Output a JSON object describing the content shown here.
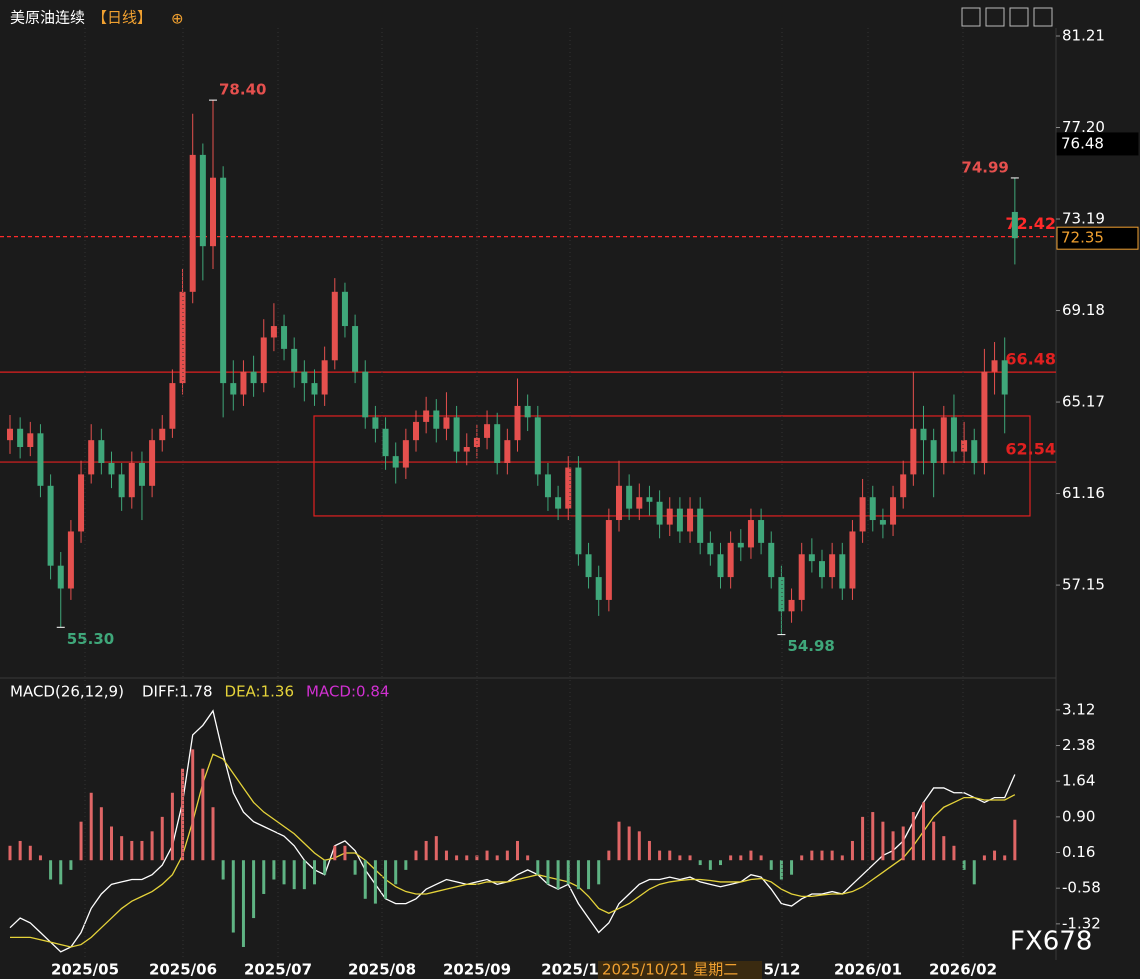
{
  "header": {
    "title": "美原油连续",
    "period": "【日线】",
    "icon": "⊕"
  },
  "watermark": "FX678",
  "crosshair_label": "2025/10/21 星期二",
  "x_labels": [
    "2025/05",
    "2025/06",
    "2025/07",
    "2025/08",
    "2025/09",
    "2025/1",
    "5/12",
    "2026/01",
    "2026/02"
  ],
  "chart_data": [
    {
      "type": "candlestick",
      "up_color": "#e5504e",
      "down_color": "#3fa77a",
      "ylim": [
        53.21,
        81.56
      ],
      "yticks": [
        57.15,
        61.16,
        65.17,
        69.18,
        73.19,
        {
          "value": 77.2,
          "label": "77.20"
        },
        81.21
      ],
      "open": [
        63.5,
        64.0,
        63.2,
        63.8,
        61.5,
        58.0,
        57.0,
        59.5,
        62.0,
        63.5,
        62.5,
        62.0,
        61.0,
        62.5,
        61.5,
        63.5,
        64.0,
        66.0,
        70.0,
        76.0,
        72.0,
        75.0,
        66.0,
        65.5,
        66.5,
        66.0,
        68.0,
        68.5,
        67.5,
        66.5,
        66.0,
        65.5,
        67.0,
        70.0,
        68.5,
        66.5,
        64.5,
        64.0,
        62.8,
        62.3,
        63.5,
        64.3,
        64.8,
        64.0,
        64.5,
        63.0,
        63.2,
        63.6,
        64.2,
        62.5,
        63.5,
        65.0,
        64.5,
        62.0,
        61.0,
        60.5,
        62.3,
        58.5,
        57.5,
        56.5,
        60.0,
        61.5,
        60.5,
        61.0,
        60.8,
        59.8,
        60.5,
        59.5,
        60.5,
        59.0,
        58.5,
        57.5,
        59.0,
        58.8,
        60.0,
        59.0,
        57.5,
        56.0,
        56.5,
        58.5,
        58.2,
        57.5,
        58.5,
        57.0,
        59.5,
        61.0,
        60.0,
        59.8,
        61.0,
        62.0,
        64.0,
        63.5,
        62.5,
        64.5,
        63.0,
        63.5,
        62.5,
        66.5,
        67.0,
        73.5
      ],
      "high": [
        64.6,
        64.5,
        64.3,
        64.2,
        62.0,
        58.6,
        60.0,
        62.6,
        64.2,
        64.0,
        63.0,
        62.5,
        63.0,
        63.0,
        64.0,
        64.6,
        66.6,
        71.0,
        77.8,
        76.5,
        78.4,
        75.5,
        67.0,
        67.0,
        67.2,
        68.8,
        69.5,
        69.0,
        68.0,
        67.0,
        66.6,
        67.6,
        70.6,
        70.4,
        69.0,
        67.0,
        65.0,
        64.5,
        63.4,
        64.0,
        64.8,
        65.4,
        65.3,
        65.6,
        65.0,
        63.8,
        64.2,
        64.8,
        64.7,
        64.0,
        66.2,
        65.5,
        65.0,
        62.5,
        61.5,
        62.8,
        62.8,
        59.0,
        58.0,
        60.5,
        62.6,
        62.0,
        61.6,
        61.5,
        61.3,
        61.0,
        61.0,
        61.0,
        61.0,
        59.5,
        59.0,
        59.5,
        59.6,
        60.5,
        60.5,
        59.5,
        58.0,
        57.0,
        59.0,
        59.2,
        58.7,
        59.0,
        59.0,
        60.0,
        61.8,
        61.5,
        60.5,
        61.5,
        62.6,
        66.5,
        65.0,
        64.0,
        65.0,
        65.5,
        64.3,
        64.0,
        67.5,
        67.8,
        68.0,
        74.99
      ],
      "low": [
        62.9,
        62.7,
        62.8,
        61.0,
        57.4,
        55.3,
        56.5,
        59.0,
        61.6,
        62.0,
        61.4,
        60.4,
        60.5,
        60.0,
        61.0,
        63.0,
        63.6,
        65.5,
        69.5,
        70.5,
        71.0,
        64.5,
        64.8,
        65.0,
        65.4,
        65.6,
        67.4,
        67.0,
        65.8,
        65.2,
        65.0,
        65.0,
        66.6,
        68.0,
        66.0,
        64.0,
        63.4,
        62.2,
        61.6,
        61.8,
        63.0,
        63.8,
        63.4,
        63.5,
        62.5,
        62.4,
        62.7,
        63.1,
        62.0,
        62.0,
        63.0,
        63.9,
        61.5,
        60.4,
        60.0,
        60.0,
        58.0,
        57.0,
        55.8,
        56.0,
        59.5,
        60.0,
        60.0,
        60.2,
        59.2,
        59.3,
        59.0,
        59.0,
        58.5,
        58.0,
        57.0,
        57.0,
        58.2,
        58.3,
        58.5,
        57.0,
        54.98,
        55.5,
        56.0,
        57.7,
        57.0,
        57.0,
        56.5,
        56.5,
        59.0,
        59.5,
        59.2,
        59.3,
        60.5,
        61.5,
        62.0,
        61.0,
        62.0,
        62.5,
        62.5,
        62.0,
        62.0,
        65.5,
        63.8,
        71.2
      ],
      "close": [
        64.0,
        63.2,
        63.8,
        61.5,
        58.0,
        57.0,
        59.5,
        62.0,
        63.5,
        62.5,
        62.0,
        61.0,
        62.5,
        61.5,
        63.5,
        64.0,
        66.0,
        70.0,
        76.0,
        72.0,
        75.0,
        66.0,
        65.5,
        66.5,
        66.0,
        68.0,
        68.5,
        67.5,
        66.5,
        66.0,
        65.5,
        67.0,
        70.0,
        68.5,
        66.5,
        64.5,
        64.0,
        62.8,
        62.3,
        63.5,
        64.3,
        64.8,
        64.0,
        64.5,
        63.0,
        63.2,
        63.6,
        64.2,
        62.5,
        63.5,
        65.0,
        64.5,
        62.0,
        61.0,
        60.5,
        62.3,
        58.5,
        57.5,
        56.5,
        60.0,
        61.5,
        60.5,
        61.0,
        60.8,
        59.8,
        60.5,
        59.5,
        60.5,
        59.0,
        58.5,
        57.5,
        59.0,
        58.8,
        60.0,
        59.0,
        57.5,
        56.0,
        56.5,
        58.5,
        58.2,
        57.5,
        58.5,
        57.0,
        59.5,
        61.0,
        60.0,
        59.8,
        61.0,
        62.0,
        64.0,
        63.5,
        62.5,
        64.5,
        63.0,
        63.5,
        62.5,
        66.5,
        67.0,
        65.5,
        72.35
      ],
      "annotations": [
        {
          "value": 78.4,
          "label": "78.40"
        },
        {
          "value": 74.99,
          "label": "74.99"
        },
        {
          "value": 55.3,
          "label": "55.30"
        },
        {
          "value": 54.98,
          "label": "54.98"
        }
      ],
      "levels": [
        {
          "value": 72.42,
          "label": "72.42",
          "dashed": true,
          "color": "#ff2a2a"
        },
        {
          "value": 66.48,
          "label": "66.48",
          "color": "#e02020"
        },
        {
          "value": 62.54,
          "label": "62.54",
          "color": "#e02020"
        }
      ],
      "zone": {
        "top": 64.56,
        "bottom": 60.18,
        "color": "#e02020"
      },
      "price_tags": [
        {
          "value": 76.48,
          "label": "76.48"
        },
        {
          "value": 72.35,
          "label": "72.35"
        }
      ]
    },
    {
      "type": "macd",
      "title": "MACD(26,12,9)",
      "ylim": [
        -2.07,
        3.74
      ],
      "yticks": [
        -1.32,
        -0.58,
        0.16,
        {
          "value": 0.9,
          "label": "0.90"
        },
        1.64,
        2.38,
        3.12
      ],
      "series": [
        {
          "name": "DIFF:1.78",
          "color": "#ffffff",
          "values": [
            -1.4,
            -1.2,
            -1.3,
            -1.5,
            -1.7,
            -1.9,
            -1.8,
            -1.5,
            -1.0,
            -0.7,
            -0.5,
            -0.45,
            -0.4,
            -0.4,
            -0.3,
            -0.1,
            0.3,
            1.2,
            2.6,
            2.8,
            3.1,
            2.2,
            1.4,
            1.0,
            0.8,
            0.7,
            0.6,
            0.5,
            0.3,
            0.0,
            -0.2,
            -0.3,
            0.3,
            0.4,
            0.2,
            -0.2,
            -0.5,
            -0.8,
            -0.9,
            -0.9,
            -0.8,
            -0.6,
            -0.5,
            -0.4,
            -0.45,
            -0.5,
            -0.45,
            -0.4,
            -0.5,
            -0.45,
            -0.3,
            -0.2,
            -0.3,
            -0.5,
            -0.6,
            -0.5,
            -0.9,
            -1.2,
            -1.5,
            -1.3,
            -0.9,
            -0.7,
            -0.5,
            -0.4,
            -0.4,
            -0.35,
            -0.4,
            -0.35,
            -0.45,
            -0.5,
            -0.55,
            -0.5,
            -0.45,
            -0.3,
            -0.35,
            -0.6,
            -0.9,
            -0.95,
            -0.8,
            -0.7,
            -0.7,
            -0.65,
            -0.7,
            -0.5,
            -0.3,
            -0.1,
            0.1,
            0.2,
            0.4,
            0.8,
            1.2,
            1.5,
            1.5,
            1.4,
            1.4,
            1.3,
            1.2,
            1.3,
            1.3,
            1.78
          ]
        },
        {
          "name": "DEA:1.36",
          "color": "#e5d33a",
          "values": [
            -1.6,
            -1.6,
            -1.6,
            -1.65,
            -1.7,
            -1.75,
            -1.8,
            -1.75,
            -1.6,
            -1.4,
            -1.2,
            -1.0,
            -0.85,
            -0.75,
            -0.65,
            -0.5,
            -0.3,
            0.1,
            0.8,
            1.6,
            2.2,
            2.1,
            1.8,
            1.5,
            1.2,
            1.0,
            0.85,
            0.7,
            0.55,
            0.35,
            0.15,
            0.0,
            0.05,
            0.15,
            0.15,
            0.0,
            -0.2,
            -0.4,
            -0.55,
            -0.65,
            -0.7,
            -0.7,
            -0.65,
            -0.6,
            -0.55,
            -0.5,
            -0.5,
            -0.45,
            -0.45,
            -0.45,
            -0.4,
            -0.35,
            -0.3,
            -0.35,
            -0.4,
            -0.45,
            -0.55,
            -0.75,
            -1.0,
            -1.1,
            -1.0,
            -0.9,
            -0.75,
            -0.6,
            -0.5,
            -0.45,
            -0.42,
            -0.4,
            -0.4,
            -0.42,
            -0.45,
            -0.45,
            -0.45,
            -0.4,
            -0.38,
            -0.45,
            -0.6,
            -0.7,
            -0.75,
            -0.75,
            -0.72,
            -0.7,
            -0.7,
            -0.65,
            -0.55,
            -0.4,
            -0.25,
            -0.1,
            0.05,
            0.3,
            0.6,
            0.9,
            1.1,
            1.2,
            1.3,
            1.3,
            1.25,
            1.25,
            1.25,
            1.36
          ]
        },
        {
          "name": "MACD:0.84",
          "color": "#d030d0",
          "up_color": "#e06666",
          "down_color": "#5fb383",
          "values": [
            0.3,
            0.4,
            0.3,
            0.1,
            -0.4,
            -0.5,
            -0.2,
            0.8,
            1.4,
            1.1,
            0.7,
            0.5,
            0.4,
            0.4,
            0.6,
            0.9,
            1.4,
            1.9,
            2.3,
            1.9,
            1.1,
            -0.4,
            -1.5,
            -1.8,
            -1.2,
            -0.7,
            -0.4,
            -0.5,
            -0.6,
            -0.6,
            -0.5,
            -0.3,
            0.3,
            0.3,
            -0.3,
            -0.8,
            -0.9,
            -0.8,
            -0.5,
            -0.2,
            0.2,
            0.4,
            0.5,
            0.2,
            0.1,
            0.1,
            0.1,
            0.2,
            0.1,
            0.2,
            0.4,
            0.1,
            -0.3,
            -0.5,
            -0.6,
            -0.5,
            -0.6,
            -0.6,
            -0.5,
            0.2,
            0.8,
            0.7,
            0.6,
            0.4,
            0.2,
            0.2,
            0.1,
            0.1,
            -0.1,
            -0.2,
            -0.1,
            0.1,
            0.1,
            0.2,
            0.1,
            -0.2,
            -0.4,
            -0.3,
            0.1,
            0.2,
            0.2,
            0.2,
            0.1,
            0.4,
            0.9,
            1.0,
            0.8,
            0.6,
            0.7,
            1.0,
            1.2,
            0.8,
            0.5,
            0.3,
            -0.2,
            -0.5,
            0.1,
            0.2,
            0.1,
            0.84
          ]
        }
      ]
    }
  ]
}
